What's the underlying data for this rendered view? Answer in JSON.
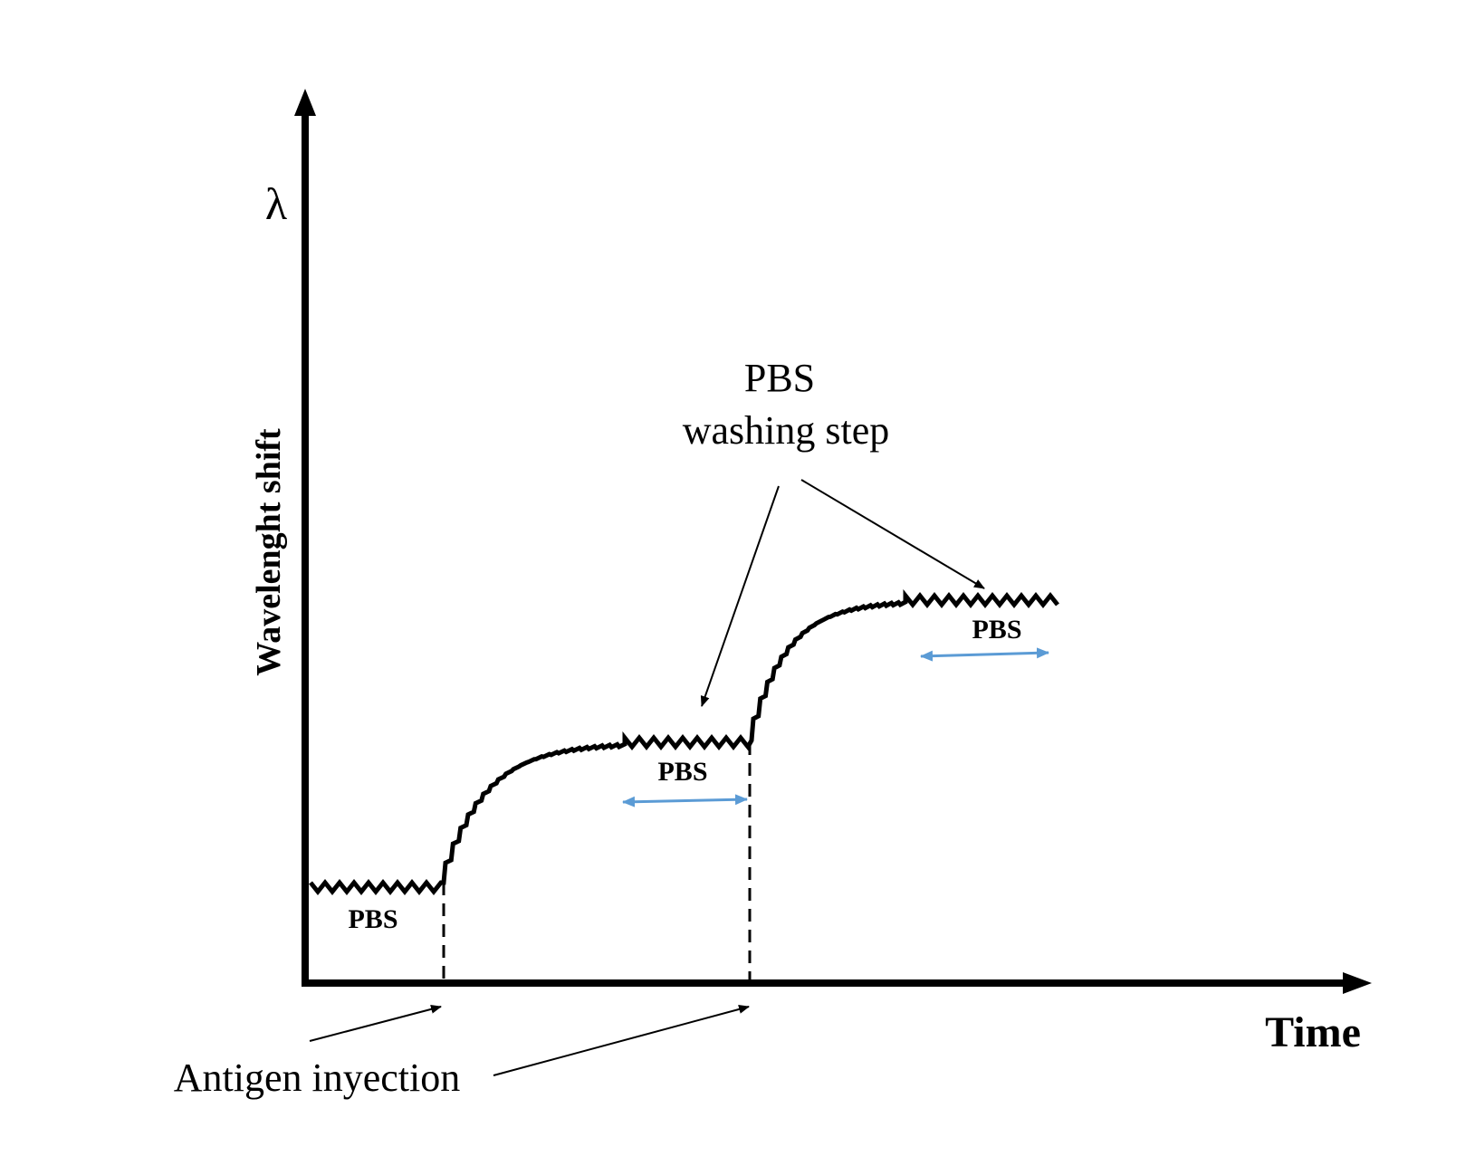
{
  "diagram": {
    "y_symbol": "λ",
    "y_axis_label": "Wavelenght shift",
    "x_axis_label": "Time",
    "washing_label_line1": "PBS",
    "washing_label_line2": "washing step",
    "injection_label": "Antigen inyection",
    "pbs_labels": [
      "PBS",
      "PBS",
      "PBS"
    ],
    "colors": {
      "ink": "#000000",
      "arrow_blue": "#5b9bd5",
      "background": "#ffffff"
    }
  }
}
